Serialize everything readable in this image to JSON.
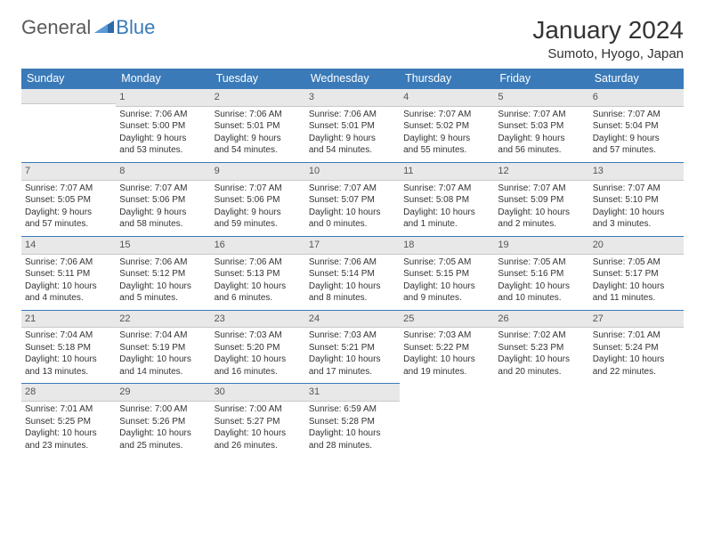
{
  "logo": {
    "text_general": "General",
    "text_blue": "Blue"
  },
  "header": {
    "month_title": "January 2024",
    "location": "Sumoto, Hyogo, Japan"
  },
  "colors": {
    "header_bg": "#3a7ab8",
    "daynum_bg": "#e8e8e8",
    "week_sep": "#3a7ab8",
    "text": "#333333"
  },
  "weekdays": [
    "Sunday",
    "Monday",
    "Tuesday",
    "Wednesday",
    "Thursday",
    "Friday",
    "Saturday"
  ],
  "weeks": [
    [
      null,
      {
        "n": "1",
        "sunrise": "7:06 AM",
        "sunset": "5:00 PM",
        "dl1": "Daylight: 9 hours",
        "dl2": "and 53 minutes."
      },
      {
        "n": "2",
        "sunrise": "7:06 AM",
        "sunset": "5:01 PM",
        "dl1": "Daylight: 9 hours",
        "dl2": "and 54 minutes."
      },
      {
        "n": "3",
        "sunrise": "7:06 AM",
        "sunset": "5:01 PM",
        "dl1": "Daylight: 9 hours",
        "dl2": "and 54 minutes."
      },
      {
        "n": "4",
        "sunrise": "7:07 AM",
        "sunset": "5:02 PM",
        "dl1": "Daylight: 9 hours",
        "dl2": "and 55 minutes."
      },
      {
        "n": "5",
        "sunrise": "7:07 AM",
        "sunset": "5:03 PM",
        "dl1": "Daylight: 9 hours",
        "dl2": "and 56 minutes."
      },
      {
        "n": "6",
        "sunrise": "7:07 AM",
        "sunset": "5:04 PM",
        "dl1": "Daylight: 9 hours",
        "dl2": "and 57 minutes."
      }
    ],
    [
      {
        "n": "7",
        "sunrise": "7:07 AM",
        "sunset": "5:05 PM",
        "dl1": "Daylight: 9 hours",
        "dl2": "and 57 minutes."
      },
      {
        "n": "8",
        "sunrise": "7:07 AM",
        "sunset": "5:06 PM",
        "dl1": "Daylight: 9 hours",
        "dl2": "and 58 minutes."
      },
      {
        "n": "9",
        "sunrise": "7:07 AM",
        "sunset": "5:06 PM",
        "dl1": "Daylight: 9 hours",
        "dl2": "and 59 minutes."
      },
      {
        "n": "10",
        "sunrise": "7:07 AM",
        "sunset": "5:07 PM",
        "dl1": "Daylight: 10 hours",
        "dl2": "and 0 minutes."
      },
      {
        "n": "11",
        "sunrise": "7:07 AM",
        "sunset": "5:08 PM",
        "dl1": "Daylight: 10 hours",
        "dl2": "and 1 minute."
      },
      {
        "n": "12",
        "sunrise": "7:07 AM",
        "sunset": "5:09 PM",
        "dl1": "Daylight: 10 hours",
        "dl2": "and 2 minutes."
      },
      {
        "n": "13",
        "sunrise": "7:07 AM",
        "sunset": "5:10 PM",
        "dl1": "Daylight: 10 hours",
        "dl2": "and 3 minutes."
      }
    ],
    [
      {
        "n": "14",
        "sunrise": "7:06 AM",
        "sunset": "5:11 PM",
        "dl1": "Daylight: 10 hours",
        "dl2": "and 4 minutes."
      },
      {
        "n": "15",
        "sunrise": "7:06 AM",
        "sunset": "5:12 PM",
        "dl1": "Daylight: 10 hours",
        "dl2": "and 5 minutes."
      },
      {
        "n": "16",
        "sunrise": "7:06 AM",
        "sunset": "5:13 PM",
        "dl1": "Daylight: 10 hours",
        "dl2": "and 6 minutes."
      },
      {
        "n": "17",
        "sunrise": "7:06 AM",
        "sunset": "5:14 PM",
        "dl1": "Daylight: 10 hours",
        "dl2": "and 8 minutes."
      },
      {
        "n": "18",
        "sunrise": "7:05 AM",
        "sunset": "5:15 PM",
        "dl1": "Daylight: 10 hours",
        "dl2": "and 9 minutes."
      },
      {
        "n": "19",
        "sunrise": "7:05 AM",
        "sunset": "5:16 PM",
        "dl1": "Daylight: 10 hours",
        "dl2": "and 10 minutes."
      },
      {
        "n": "20",
        "sunrise": "7:05 AM",
        "sunset": "5:17 PM",
        "dl1": "Daylight: 10 hours",
        "dl2": "and 11 minutes."
      }
    ],
    [
      {
        "n": "21",
        "sunrise": "7:04 AM",
        "sunset": "5:18 PM",
        "dl1": "Daylight: 10 hours",
        "dl2": "and 13 minutes."
      },
      {
        "n": "22",
        "sunrise": "7:04 AM",
        "sunset": "5:19 PM",
        "dl1": "Daylight: 10 hours",
        "dl2": "and 14 minutes."
      },
      {
        "n": "23",
        "sunrise": "7:03 AM",
        "sunset": "5:20 PM",
        "dl1": "Daylight: 10 hours",
        "dl2": "and 16 minutes."
      },
      {
        "n": "24",
        "sunrise": "7:03 AM",
        "sunset": "5:21 PM",
        "dl1": "Daylight: 10 hours",
        "dl2": "and 17 minutes."
      },
      {
        "n": "25",
        "sunrise": "7:03 AM",
        "sunset": "5:22 PM",
        "dl1": "Daylight: 10 hours",
        "dl2": "and 19 minutes."
      },
      {
        "n": "26",
        "sunrise": "7:02 AM",
        "sunset": "5:23 PM",
        "dl1": "Daylight: 10 hours",
        "dl2": "and 20 minutes."
      },
      {
        "n": "27",
        "sunrise": "7:01 AM",
        "sunset": "5:24 PM",
        "dl1": "Daylight: 10 hours",
        "dl2": "and 22 minutes."
      }
    ],
    [
      {
        "n": "28",
        "sunrise": "7:01 AM",
        "sunset": "5:25 PM",
        "dl1": "Daylight: 10 hours",
        "dl2": "and 23 minutes."
      },
      {
        "n": "29",
        "sunrise": "7:00 AM",
        "sunset": "5:26 PM",
        "dl1": "Daylight: 10 hours",
        "dl2": "and 25 minutes."
      },
      {
        "n": "30",
        "sunrise": "7:00 AM",
        "sunset": "5:27 PM",
        "dl1": "Daylight: 10 hours",
        "dl2": "and 26 minutes."
      },
      {
        "n": "31",
        "sunrise": "6:59 AM",
        "sunset": "5:28 PM",
        "dl1": "Daylight: 10 hours",
        "dl2": "and 28 minutes."
      },
      null,
      null,
      null
    ]
  ],
  "labels": {
    "sunrise": "Sunrise: ",
    "sunset": "Sunset: "
  }
}
